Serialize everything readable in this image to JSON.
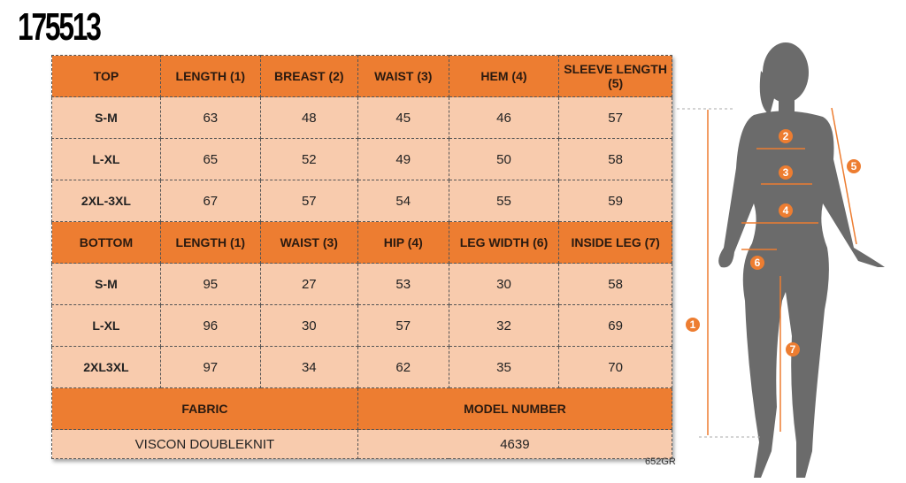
{
  "product_code": "175513",
  "top": {
    "headers": [
      "TOP",
      "LENGTH (1)",
      "BREAST (2)",
      "WAIST (3)",
      "HEM (4)",
      "SLEEVE LENGTH (5)"
    ],
    "rows": [
      [
        "S-M",
        "63",
        "48",
        "45",
        "46",
        "57"
      ],
      [
        "L-XL",
        "65",
        "52",
        "49",
        "50",
        "58"
      ],
      [
        "2XL-3XL",
        "67",
        "57",
        "54",
        "55",
        "59"
      ]
    ]
  },
  "bottom": {
    "headers": [
      "BOTTOM",
      "LENGTH (1)",
      "WAIST (3)",
      "HIP (4)",
      "LEG WIDTH (6)",
      "INSIDE LEG (7)"
    ],
    "rows": [
      [
        "S-M",
        "95",
        "27",
        "53",
        "30",
        "58"
      ],
      [
        "L-XL",
        "96",
        "30",
        "57",
        "32",
        "69"
      ],
      [
        "2XL3XL",
        "97",
        "34",
        "62",
        "35",
        "70"
      ]
    ]
  },
  "fabric": {
    "label": "FABRIC",
    "value": "VISCON DOUBLEKNIT"
  },
  "model": {
    "label": "MODEL NUMBER",
    "value": "4639"
  },
  "footer_code": "652GR",
  "markers": [
    "1",
    "2",
    "3",
    "4",
    "5",
    "6",
    "7"
  ],
  "colors": {
    "header": "#ED7D31",
    "cell": "#F8CBAD",
    "silhouette": "#6b6b6b"
  }
}
